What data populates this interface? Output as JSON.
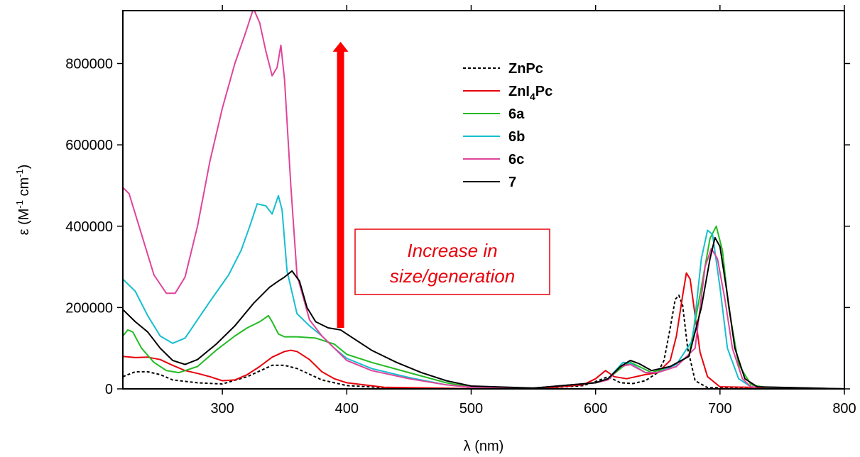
{
  "chart_data": {
    "type": "line",
    "xlabel": "λ (nm)",
    "ylabel": {
      "prefix": "ε (M",
      "sup1": "-1",
      "mid": " cm",
      "sup2": "-1",
      "suffix": ")"
    },
    "xlim": [
      220,
      800
    ],
    "ylim": [
      0,
      930000
    ],
    "xticks": [
      300,
      400,
      500,
      600,
      700,
      800
    ],
    "yticks": [
      0,
      200000,
      400000,
      600000,
      800000
    ],
    "grid": false,
    "legend_position": "top-center",
    "annotation": {
      "lines": [
        "Increase in",
        "size/generation"
      ],
      "color": "#e8000b"
    },
    "arrow": {
      "color": "#ff0000",
      "x": 395,
      "y_from": 150000,
      "y_to": 850000
    },
    "series": [
      {
        "name": "ZnPc",
        "label_main": "ZnPc",
        "label_sub": "",
        "label_tail": "",
        "color": "#000000",
        "dash": "4,3",
        "points": [
          [
            220,
            30000
          ],
          [
            230,
            42000
          ],
          [
            240,
            42000
          ],
          [
            250,
            35000
          ],
          [
            260,
            22000
          ],
          [
            280,
            15000
          ],
          [
            300,
            12000
          ],
          [
            320,
            30000
          ],
          [
            340,
            58000
          ],
          [
            350,
            58000
          ],
          [
            360,
            50000
          ],
          [
            380,
            22000
          ],
          [
            400,
            8000
          ],
          [
            430,
            3000
          ],
          [
            500,
            500
          ],
          [
            560,
            2000
          ],
          [
            590,
            8000
          ],
          [
            600,
            18000
          ],
          [
            610,
            30000
          ],
          [
            620,
            15000
          ],
          [
            630,
            13000
          ],
          [
            640,
            20000
          ],
          [
            650,
            40000
          ],
          [
            655,
            70000
          ],
          [
            660,
            150000
          ],
          [
            664,
            220000
          ],
          [
            667,
            230000
          ],
          [
            670,
            205000
          ],
          [
            674,
            100000
          ],
          [
            680,
            20000
          ],
          [
            690,
            3000
          ],
          [
            800,
            0
          ]
        ]
      },
      {
        "name": "ZnI4Pc",
        "label_main": "ZnI",
        "label_sub": "4",
        "label_tail": "Pc",
        "color": "#e8000b",
        "dash": "",
        "points": [
          [
            220,
            80000
          ],
          [
            230,
            77000
          ],
          [
            240,
            78000
          ],
          [
            250,
            72000
          ],
          [
            260,
            58000
          ],
          [
            270,
            45000
          ],
          [
            280,
            38000
          ],
          [
            290,
            30000
          ],
          [
            300,
            20000
          ],
          [
            310,
            22000
          ],
          [
            320,
            35000
          ],
          [
            330,
            55000
          ],
          [
            340,
            78000
          ],
          [
            350,
            92000
          ],
          [
            355,
            95000
          ],
          [
            360,
            92000
          ],
          [
            370,
            72000
          ],
          [
            380,
            42000
          ],
          [
            390,
            25000
          ],
          [
            400,
            15000
          ],
          [
            430,
            4000
          ],
          [
            500,
            500
          ],
          [
            560,
            2000
          ],
          [
            590,
            10000
          ],
          [
            600,
            25000
          ],
          [
            608,
            45000
          ],
          [
            615,
            30000
          ],
          [
            625,
            25000
          ],
          [
            640,
            35000
          ],
          [
            650,
            40000
          ],
          [
            660,
            70000
          ],
          [
            665,
            130000
          ],
          [
            670,
            230000
          ],
          [
            673,
            285000
          ],
          [
            676,
            270000
          ],
          [
            680,
            180000
          ],
          [
            684,
            90000
          ],
          [
            690,
            30000
          ],
          [
            700,
            5000
          ],
          [
            800,
            0
          ]
        ]
      },
      {
        "name": "6a",
        "label_main": "6a",
        "label_sub": "",
        "label_tail": "",
        "color": "#22bb22",
        "dash": "",
        "points": [
          [
            220,
            130000
          ],
          [
            224,
            145000
          ],
          [
            228,
            140000
          ],
          [
            235,
            100000
          ],
          [
            245,
            65000
          ],
          [
            255,
            45000
          ],
          [
            265,
            40000
          ],
          [
            280,
            55000
          ],
          [
            295,
            95000
          ],
          [
            310,
            130000
          ],
          [
            320,
            150000
          ],
          [
            330,
            165000
          ],
          [
            337,
            180000
          ],
          [
            340,
            165000
          ],
          [
            345,
            135000
          ],
          [
            350,
            128000
          ],
          [
            360,
            128000
          ],
          [
            375,
            125000
          ],
          [
            390,
            110000
          ],
          [
            400,
            85000
          ],
          [
            420,
            65000
          ],
          [
            450,
            40000
          ],
          [
            480,
            15000
          ],
          [
            500,
            5000
          ],
          [
            550,
            2000
          ],
          [
            600,
            15000
          ],
          [
            610,
            25000
          ],
          [
            622,
            55000
          ],
          [
            628,
            65000
          ],
          [
            635,
            55000
          ],
          [
            645,
            40000
          ],
          [
            660,
            55000
          ],
          [
            675,
            80000
          ],
          [
            685,
            250000
          ],
          [
            692,
            370000
          ],
          [
            697,
            400000
          ],
          [
            702,
            340000
          ],
          [
            707,
            200000
          ],
          [
            715,
            60000
          ],
          [
            725,
            10000
          ],
          [
            740,
            2000
          ],
          [
            800,
            0
          ]
        ]
      },
      {
        "name": "6b",
        "label_main": "6b",
        "label_sub": "",
        "label_tail": "",
        "color": "#17becf",
        "dash": "",
        "points": [
          [
            220,
            270000
          ],
          [
            230,
            240000
          ],
          [
            240,
            180000
          ],
          [
            250,
            130000
          ],
          [
            260,
            112000
          ],
          [
            270,
            125000
          ],
          [
            290,
            215000
          ],
          [
            305,
            280000
          ],
          [
            315,
            340000
          ],
          [
            322,
            400000
          ],
          [
            328,
            455000
          ],
          [
            335,
            450000
          ],
          [
            340,
            430000
          ],
          [
            345,
            475000
          ],
          [
            348,
            440000
          ],
          [
            352,
            290000
          ],
          [
            360,
            185000
          ],
          [
            370,
            155000
          ],
          [
            380,
            130000
          ],
          [
            390,
            100000
          ],
          [
            400,
            75000
          ],
          [
            420,
            50000
          ],
          [
            450,
            28000
          ],
          [
            480,
            10000
          ],
          [
            500,
            4000
          ],
          [
            550,
            2000
          ],
          [
            600,
            15000
          ],
          [
            610,
            25000
          ],
          [
            622,
            65000
          ],
          [
            628,
            63000
          ],
          [
            640,
            40000
          ],
          [
            650,
            40000
          ],
          [
            665,
            60000
          ],
          [
            678,
            120000
          ],
          [
            685,
            320000
          ],
          [
            690,
            390000
          ],
          [
            694,
            380000
          ],
          [
            700,
            250000
          ],
          [
            706,
            100000
          ],
          [
            715,
            25000
          ],
          [
            725,
            5000
          ],
          [
            800,
            0
          ]
        ]
      },
      {
        "name": "6c",
        "label_main": "6c",
        "label_sub": "",
        "label_tail": "",
        "color": "#e0449a",
        "dash": "",
        "points": [
          [
            220,
            495000
          ],
          [
            225,
            480000
          ],
          [
            235,
            380000
          ],
          [
            245,
            280000
          ],
          [
            255,
            235000
          ],
          [
            262,
            235000
          ],
          [
            270,
            275000
          ],
          [
            280,
            400000
          ],
          [
            290,
            560000
          ],
          [
            300,
            690000
          ],
          [
            310,
            800000
          ],
          [
            318,
            870000
          ],
          [
            325,
            935000
          ],
          [
            330,
            900000
          ],
          [
            335,
            830000
          ],
          [
            340,
            770000
          ],
          [
            344,
            790000
          ],
          [
            347,
            845000
          ],
          [
            350,
            760000
          ],
          [
            355,
            500000
          ],
          [
            360,
            280000
          ],
          [
            370,
            170000
          ],
          [
            380,
            130000
          ],
          [
            390,
            100000
          ],
          [
            400,
            70000
          ],
          [
            420,
            45000
          ],
          [
            450,
            25000
          ],
          [
            480,
            10000
          ],
          [
            500,
            4000
          ],
          [
            550,
            2000
          ],
          [
            600,
            15000
          ],
          [
            610,
            22000
          ],
          [
            620,
            55000
          ],
          [
            628,
            60000
          ],
          [
            640,
            40000
          ],
          [
            650,
            40000
          ],
          [
            665,
            55000
          ],
          [
            680,
            100000
          ],
          [
            688,
            300000
          ],
          [
            693,
            345000
          ],
          [
            698,
            320000
          ],
          [
            704,
            220000
          ],
          [
            710,
            100000
          ],
          [
            718,
            25000
          ],
          [
            725,
            5000
          ],
          [
            800,
            0
          ]
        ]
      },
      {
        "name": "7",
        "label_main": "7",
        "label_sub": "",
        "label_tail": "",
        "color": "#000000",
        "dash": "",
        "points": [
          [
            220,
            195000
          ],
          [
            230,
            165000
          ],
          [
            240,
            140000
          ],
          [
            250,
            100000
          ],
          [
            260,
            70000
          ],
          [
            270,
            60000
          ],
          [
            280,
            72000
          ],
          [
            295,
            110000
          ],
          [
            310,
            155000
          ],
          [
            325,
            210000
          ],
          [
            338,
            250000
          ],
          [
            345,
            265000
          ],
          [
            350,
            275000
          ],
          [
            356,
            290000
          ],
          [
            362,
            265000
          ],
          [
            368,
            200000
          ],
          [
            375,
            165000
          ],
          [
            385,
            150000
          ],
          [
            395,
            145000
          ],
          [
            405,
            125000
          ],
          [
            420,
            95000
          ],
          [
            440,
            65000
          ],
          [
            460,
            40000
          ],
          [
            480,
            20000
          ],
          [
            500,
            7000
          ],
          [
            550,
            2000
          ],
          [
            600,
            15000
          ],
          [
            610,
            25000
          ],
          [
            620,
            55000
          ],
          [
            628,
            70000
          ],
          [
            635,
            62000
          ],
          [
            645,
            45000
          ],
          [
            660,
            55000
          ],
          [
            675,
            80000
          ],
          [
            685,
            200000
          ],
          [
            692,
            320000
          ],
          [
            696,
            372000
          ],
          [
            700,
            350000
          ],
          [
            705,
            250000
          ],
          [
            712,
            100000
          ],
          [
            720,
            25000
          ],
          [
            730,
            5000
          ],
          [
            800,
            0
          ]
        ]
      }
    ]
  }
}
